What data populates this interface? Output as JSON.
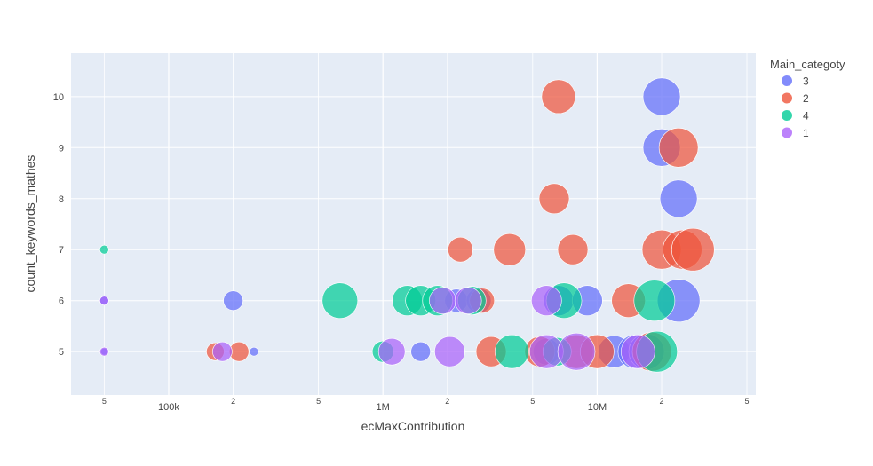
{
  "chart_data": {
    "type": "scatter",
    "xlabel": "ecMaxContribution",
    "ylabel": "count_keywords_mathes",
    "x_scale": "log",
    "xlim": [
      35000,
      55000000
    ],
    "ylim": [
      4.15,
      10.85
    ],
    "x_ticks": [
      {
        "value": 50000,
        "label": "5"
      },
      {
        "value": 100000,
        "label": "100k"
      },
      {
        "value": 200000,
        "label": "2"
      },
      {
        "value": 500000,
        "label": "5"
      },
      {
        "value": 1000000,
        "label": "1M"
      },
      {
        "value": 2000000,
        "label": "2"
      },
      {
        "value": 5000000,
        "label": "5"
      },
      {
        "value": 10000000,
        "label": "10M"
      },
      {
        "value": 20000000,
        "label": "2"
      },
      {
        "value": 50000000,
        "label": "5"
      }
    ],
    "y_ticks": [
      5,
      6,
      7,
      8,
      9,
      10
    ],
    "grid": true,
    "legend": {
      "title": "Main_categoty",
      "placement": "right"
    },
    "series": [
      {
        "name": "3",
        "color": "#636efa",
        "points": [
          {
            "x": 50000,
            "y": 5,
            "size": 4
          },
          {
            "x": 50000,
            "y": 6,
            "size": 5
          },
          {
            "x": 200000,
            "y": 6,
            "size": 11
          },
          {
            "x": 250000,
            "y": 5,
            "size": 5
          },
          {
            "x": 1500000,
            "y": 5,
            "size": 11
          },
          {
            "x": 2200000,
            "y": 6,
            "size": 13
          },
          {
            "x": 2800000,
            "y": 6,
            "size": 14
          },
          {
            "x": 5800000,
            "y": 5,
            "size": 15
          },
          {
            "x": 6600000,
            "y": 6,
            "size": 17
          },
          {
            "x": 9000000,
            "y": 6,
            "size": 17
          },
          {
            "x": 12000000,
            "y": 5,
            "size": 18
          },
          {
            "x": 15000000,
            "y": 5,
            "size": 19
          },
          {
            "x": 17000000,
            "y": 5,
            "size": 20
          },
          {
            "x": 20000000,
            "y": 10,
            "size": 21
          },
          {
            "x": 20000000,
            "y": 9,
            "size": 21
          },
          {
            "x": 24000000,
            "y": 8,
            "size": 21
          },
          {
            "x": 24000000,
            "y": 6,
            "size": 24
          }
        ]
      },
      {
        "name": "2",
        "color": "#ef553b",
        "points": [
          {
            "x": 165000,
            "y": 5,
            "size": 10
          },
          {
            "x": 213000,
            "y": 5,
            "size": 11
          },
          {
            "x": 2300000,
            "y": 7,
            "size": 14
          },
          {
            "x": 2900000,
            "y": 6,
            "size": 14
          },
          {
            "x": 3200000,
            "y": 5,
            "size": 17
          },
          {
            "x": 3900000,
            "y": 7,
            "size": 18
          },
          {
            "x": 5400000,
            "y": 5,
            "size": 17
          },
          {
            "x": 6300000,
            "y": 8,
            "size": 17
          },
          {
            "x": 6600000,
            "y": 10,
            "size": 19
          },
          {
            "x": 7700000,
            "y": 7,
            "size": 17
          },
          {
            "x": 8000000,
            "y": 5,
            "size": 19
          },
          {
            "x": 10000000,
            "y": 5,
            "size": 19
          },
          {
            "x": 14000000,
            "y": 6,
            "size": 19
          },
          {
            "x": 18000000,
            "y": 5,
            "size": 22
          },
          {
            "x": 20000000,
            "y": 7,
            "size": 22
          },
          {
            "x": 24000000,
            "y": 9,
            "size": 22
          },
          {
            "x": 25000000,
            "y": 7,
            "size": 22
          },
          {
            "x": 28000000,
            "y": 7,
            "size": 24
          }
        ]
      },
      {
        "name": "4",
        "color": "#00cc96",
        "points": [
          {
            "x": 50000,
            "y": 7,
            "size": 5
          },
          {
            "x": 630000,
            "y": 6,
            "size": 20
          },
          {
            "x": 1000000,
            "y": 5,
            "size": 12
          },
          {
            "x": 1300000,
            "y": 6,
            "size": 17
          },
          {
            "x": 1500000,
            "y": 6,
            "size": 17
          },
          {
            "x": 1800000,
            "y": 6,
            "size": 17
          },
          {
            "x": 2600000,
            "y": 6,
            "size": 16
          },
          {
            "x": 4000000,
            "y": 5,
            "size": 19
          },
          {
            "x": 6500000,
            "y": 5,
            "size": 16
          },
          {
            "x": 7000000,
            "y": 6,
            "size": 20
          },
          {
            "x": 18500000,
            "y": 6,
            "size": 23
          },
          {
            "x": 19000000,
            "y": 5,
            "size": 23
          }
        ]
      },
      {
        "name": "1",
        "color": "#ab63fa",
        "points": [
          {
            "x": 50000,
            "y": 5,
            "size": 5
          },
          {
            "x": 50000,
            "y": 6,
            "size": 5
          },
          {
            "x": 178000,
            "y": 5,
            "size": 11
          },
          {
            "x": 1100000,
            "y": 5,
            "size": 15
          },
          {
            "x": 1900000,
            "y": 6,
            "size": 15
          },
          {
            "x": 2050000,
            "y": 5,
            "size": 17
          },
          {
            "x": 2500000,
            "y": 6,
            "size": 15
          },
          {
            "x": 5800000,
            "y": 6,
            "size": 17
          },
          {
            "x": 5800000,
            "y": 5,
            "size": 19
          },
          {
            "x": 8000000,
            "y": 5,
            "size": 21
          },
          {
            "x": 15500000,
            "y": 5,
            "size": 19
          }
        ]
      }
    ]
  }
}
